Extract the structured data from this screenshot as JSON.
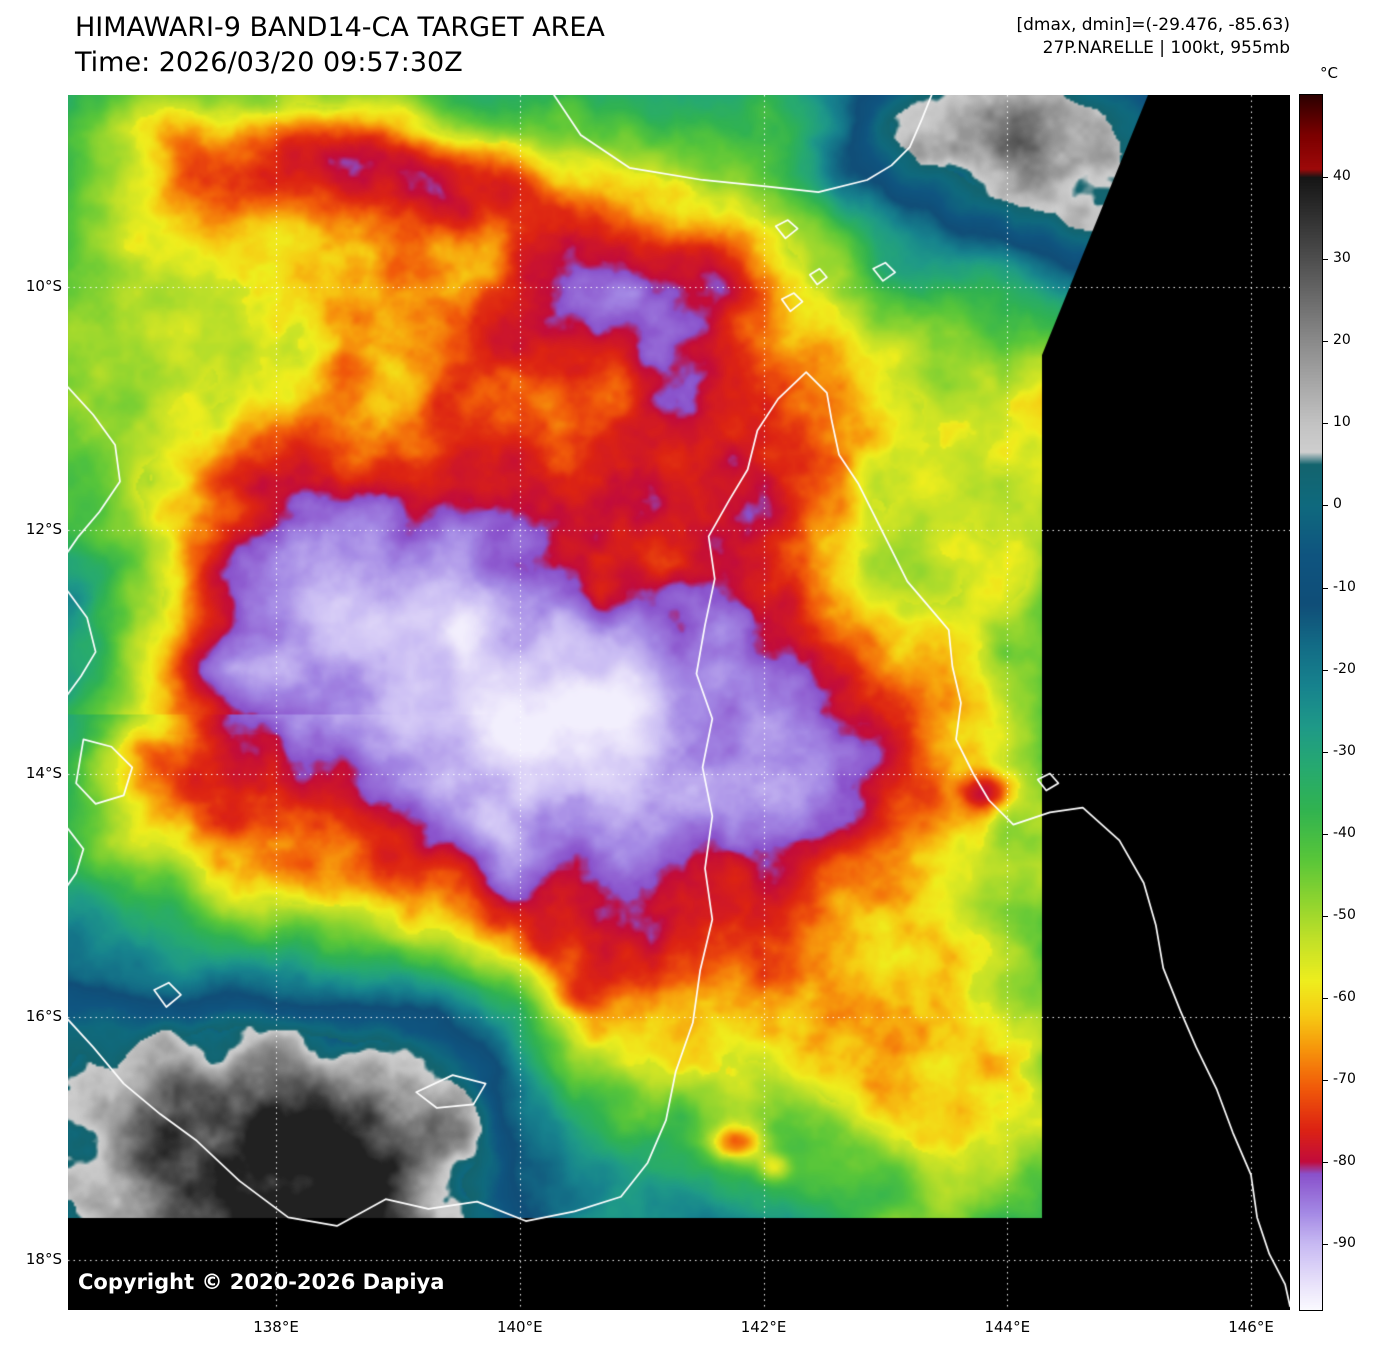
{
  "header": {
    "title": "HIMAWARI-9 BAND14-CA TARGET AREA",
    "time": "Time: 2026/03/20 09:57:30Z",
    "dmax_dmin": "[dmax, dmin]=(-29.476, -85.63)",
    "storm": "27P.NARELLE | 100kt, 955mb"
  },
  "map": {
    "copyright": "Copyright © 2020-2026 Dapiya",
    "lat_labels": [
      "10°S",
      "12°S",
      "14°S",
      "16°S",
      "18°S"
    ],
    "lat_deg": [
      10,
      12,
      14,
      16,
      18
    ],
    "lon_labels": [
      "138°E",
      "140°E",
      "142°E",
      "144°E",
      "146°E"
    ],
    "lon_deg": [
      138,
      140,
      142,
      144,
      146
    ]
  },
  "colorbar": {
    "unit": "°C",
    "ticks": [
      40,
      30,
      20,
      10,
      0,
      -10,
      -20,
      -30,
      -40,
      -50,
      -60,
      -70,
      -80,
      -90
    ],
    "top_value": 50,
    "bottom_value": -98,
    "stops": [
      {
        "t": 50,
        "c": "#2e0000"
      },
      {
        "t": 45,
        "c": "#7e0000"
      },
      {
        "t": 41,
        "c": "#9e0a0a"
      },
      {
        "t": 40,
        "c": "#161616"
      },
      {
        "t": 30,
        "c": "#4f4f4f"
      },
      {
        "t": 20,
        "c": "#8b8b8b"
      },
      {
        "t": 10,
        "c": "#c3c3c3"
      },
      {
        "t": 6.5,
        "c": "#cfcfcf"
      },
      {
        "t": 5,
        "c": "#14646e"
      },
      {
        "t": 0,
        "c": "#0f6a7e"
      },
      {
        "t": -6,
        "c": "#0f5580"
      },
      {
        "t": -12,
        "c": "#104e78"
      },
      {
        "t": -17,
        "c": "#136c86"
      },
      {
        "t": -22,
        "c": "#17838e"
      },
      {
        "t": -27,
        "c": "#1f9a88"
      },
      {
        "t": -32,
        "c": "#27aa70"
      },
      {
        "t": -37,
        "c": "#31b351"
      },
      {
        "t": -43,
        "c": "#58c63a"
      },
      {
        "t": -48,
        "c": "#8dd430"
      },
      {
        "t": -53,
        "c": "#c3e128"
      },
      {
        "t": -58,
        "c": "#efee1e"
      },
      {
        "t": -62,
        "c": "#f6cd14"
      },
      {
        "t": -66,
        "c": "#f7990c"
      },
      {
        "t": -71,
        "c": "#f15a0a"
      },
      {
        "t": -76,
        "c": "#dd2413"
      },
      {
        "t": -80,
        "c": "#c20c3c"
      },
      {
        "t": -81.5,
        "c": "#8a52cc"
      },
      {
        "t": -86,
        "c": "#a387e4"
      },
      {
        "t": -90,
        "c": "#c8baf3"
      },
      {
        "t": -95,
        "c": "#eae4fb"
      },
      {
        "t": -98,
        "c": "#fbfaff"
      }
    ]
  }
}
